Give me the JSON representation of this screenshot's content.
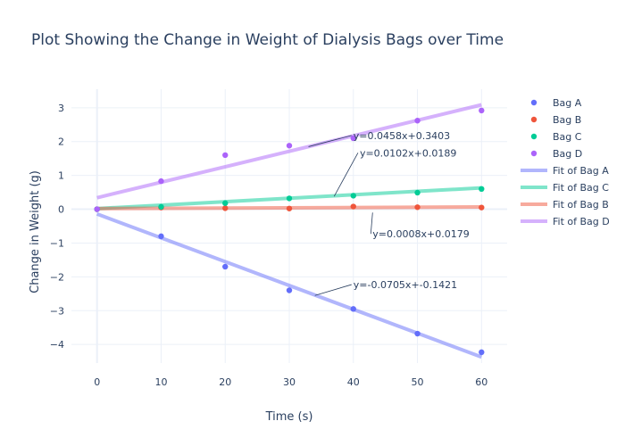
{
  "chart_data": {
    "type": "scatter",
    "title": "Plot Showing the Change in Weight of Dialysis Bags over Time",
    "xlabel": "Time (s)",
    "ylabel": "Change in Weight (g)",
    "xlim": [
      -4,
      64
    ],
    "ylim": [
      -4.55,
      3.55
    ],
    "x_ticks": [
      0,
      10,
      20,
      30,
      40,
      50,
      60
    ],
    "y_ticks": [
      -4,
      -3,
      -2,
      -1,
      0,
      1,
      2,
      3
    ],
    "grid": true,
    "legend_position": "right",
    "series": [
      {
        "name": "Bag A",
        "kind": "points",
        "color": "#636efa",
        "x": [
          0,
          10,
          20,
          30,
          40,
          50,
          60
        ],
        "y": [
          0,
          -0.8,
          -1.7,
          -2.4,
          -2.95,
          -3.68,
          -4.23
        ]
      },
      {
        "name": "Bag B",
        "kind": "points",
        "color": "#ef553b",
        "x": [
          0,
          10,
          20,
          30,
          40,
          50,
          60
        ],
        "y": [
          0,
          0.05,
          0.03,
          0.02,
          0.08,
          0.06,
          0.05
        ]
      },
      {
        "name": "Bag C",
        "kind": "points",
        "color": "#00cc96",
        "x": [
          0,
          10,
          20,
          30,
          40,
          50,
          60
        ],
        "y": [
          0,
          0.07,
          0.18,
          0.32,
          0.4,
          0.49,
          0.6
        ]
      },
      {
        "name": "Bag D",
        "kind": "points",
        "color": "#ab63fa",
        "x": [
          0,
          10,
          20,
          30,
          40,
          50,
          60
        ],
        "y": [
          0,
          0.83,
          1.6,
          1.88,
          2.1,
          2.62,
          2.92
        ]
      },
      {
        "name": "Fit of Bag A",
        "kind": "line",
        "color": "#636efa",
        "x": [
          0,
          60
        ],
        "y": [
          -0.1421,
          -4.3721
        ]
      },
      {
        "name": "Fit of Bag C",
        "kind": "line",
        "color": "#00cc96",
        "x": [
          0,
          60
        ],
        "y": [
          0.0189,
          0.6309
        ]
      },
      {
        "name": "Fit of Bag B",
        "kind": "line",
        "color": "#ef553b",
        "x": [
          0,
          60
        ],
        "y": [
          0.0179,
          0.0659
        ]
      },
      {
        "name": "Fit of Bag D",
        "kind": "line",
        "color": "#ab63fa",
        "x": [
          0,
          60
        ],
        "y": [
          0.3403,
          3.0883
        ]
      }
    ],
    "annotations": [
      {
        "text": "y=0.0458x+0.3403",
        "point": [
          33,
          1.85
        ],
        "label_at": [
          40,
          2.18
        ],
        "anchor": "start"
      },
      {
        "text": "y=0.0102x+0.0189",
        "point": [
          37,
          0.38
        ],
        "label_at": [
          41,
          1.67
        ],
        "anchor": "start"
      },
      {
        "text": "y=0.0008x+0.0179",
        "point": [
          43,
          -0.1
        ],
        "label_at": [
          43,
          -0.73
        ],
        "anchor": "start"
      },
      {
        "text": "y=-0.0705x+-0.1421",
        "point": [
          34,
          -2.55
        ],
        "label_at": [
          40,
          -2.23
        ],
        "anchor": "start"
      }
    ]
  }
}
